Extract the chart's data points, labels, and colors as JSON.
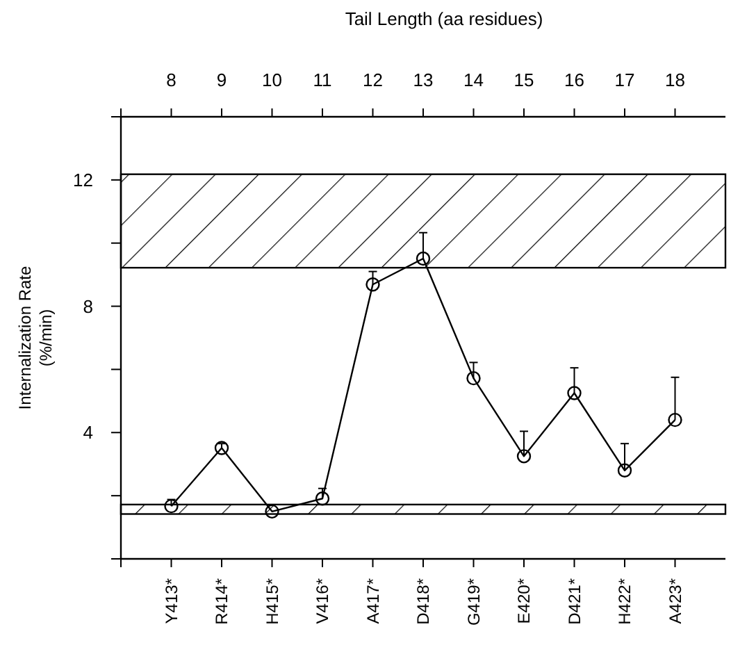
{
  "chart_data": {
    "type": "line",
    "xlabel": null,
    "x2label": "Tail Length (aa residues)",
    "ylabel": "Internalization Rate\n(%/min)",
    "categories": [
      "Y413*",
      "R414*",
      "H415*",
      "V416*",
      "A417*",
      "D418*",
      "G419*",
      "E420*",
      "D421*",
      "H422*",
      "A423*"
    ],
    "series": [
      {
        "color": "#000000",
        "values": [
          1.67,
          3.51,
          1.5,
          1.91,
          8.69,
          9.51,
          5.72,
          3.25,
          5.25,
          2.8,
          4.4
        ],
        "errors": [
          [
            1.67,
            1.88
          ],
          [
            3.51,
            3.65
          ],
          null,
          [
            1.91,
            2.23
          ],
          [
            8.69,
            9.1
          ],
          [
            9.51,
            10.33
          ],
          [
            5.72,
            6.22
          ],
          [
            3.25,
            4.04
          ],
          [
            5.25,
            6.05
          ],
          [
            2.8,
            3.65
          ],
          [
            4.4,
            5.75
          ]
        ]
      }
    ],
    "ylim": [
      0,
      14
    ],
    "yticks": [
      {
        "value": 0,
        "label": null
      },
      {
        "value": 2,
        "label": null
      },
      4,
      {
        "value": 6,
        "label": null
      },
      8,
      {
        "value": 10,
        "label": null
      },
      12,
      {
        "value": 14,
        "label": null
      }
    ],
    "x2lim": [
      7,
      19
    ],
    "x2ticks": [
      {
        "value": 7,
        "label": null
      },
      8,
      9,
      10,
      11,
      12,
      13,
      14,
      15,
      16,
      17,
      18
    ],
    "bands": [
      {
        "axis": "y",
        "from": 9.22,
        "to": 12.18,
        "color": "#000000"
      },
      {
        "axis": "y",
        "from": 1.42,
        "to": 1.72,
        "color": "#000000"
      }
    ],
    "marker": "circle",
    "line_style": "solid",
    "grid": false
  }
}
